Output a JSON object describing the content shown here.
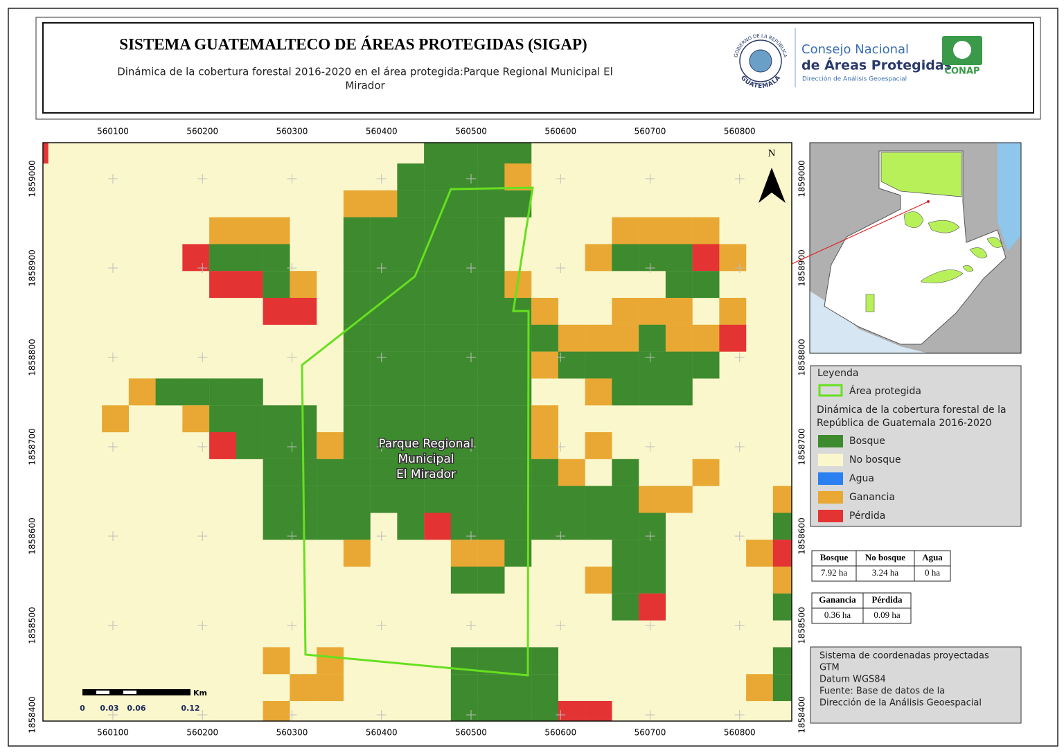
{
  "header": {
    "title": "SISTEMA GUATEMALTECO DE ÁREAS PROTEGIDAS  (SIGAP)",
    "subtitle_lines": [
      "Dinámica de la cobertura forestal 2016-2020 en el área protegida:Parque Regional Municipal El",
      "Mirador"
    ]
  },
  "logos": {
    "seal_top": "GOBIERNO DE LA REPÚBLICA",
    "seal_bottom": "GUATEMALA",
    "org_line1": "Consejo Nacional",
    "org_line2": "de Áreas Protegidas",
    "org_line3": "Dirección de Análisis Geoespacial",
    "acronym": "CONAP"
  },
  "map": {
    "x_ticks": [
      560100,
      560200,
      560300,
      560400,
      560500,
      560600,
      560700,
      560800
    ],
    "y_ticks": [
      1859000,
      1858900,
      1858800,
      1858700,
      1858600,
      1858500,
      1858400
    ],
    "north": "N",
    "area_label": [
      "Parque Regional",
      "Municipal",
      "El Mirador"
    ],
    "scale": {
      "unit": "Km",
      "labels": [
        0,
        0.03,
        0.06,
        0.12
      ]
    }
  },
  "legend": {
    "title": "Leyenda",
    "area": {
      "label": "Área protegida",
      "color": "#66e01f"
    },
    "subtitle_lines": [
      "Dinámica de la cobertura forestal de la",
      "República de Guatemala 2016-2020"
    ],
    "items": [
      {
        "label": "Bosque",
        "color": "#3e8a2e"
      },
      {
        "label": "No bosque",
        "color": "#fbf7cc"
      },
      {
        "label": "Agua",
        "color": "#2a80f0"
      },
      {
        "label": "Ganancia",
        "color": "#e8a833"
      },
      {
        "label": "Pérdida",
        "color": "#e43333"
      }
    ]
  },
  "stats_tables": [
    {
      "headers": [
        "Bosque",
        "No bosque",
        "Agua"
      ],
      "values": [
        "7.92 ha",
        "3.24 ha",
        "0 ha"
      ]
    },
    {
      "headers": [
        "Ganancia",
        "Pérdida"
      ],
      "values": [
        "0.36 ha",
        "0.09 ha"
      ]
    }
  ],
  "info_lines": [
    "Sistema de coordenadas proyectadas",
    "GTM",
    "Datum WGS84",
    "Fuente: Base de datos de la",
    "Dirección de la Análisis Geoespacial"
  ]
}
